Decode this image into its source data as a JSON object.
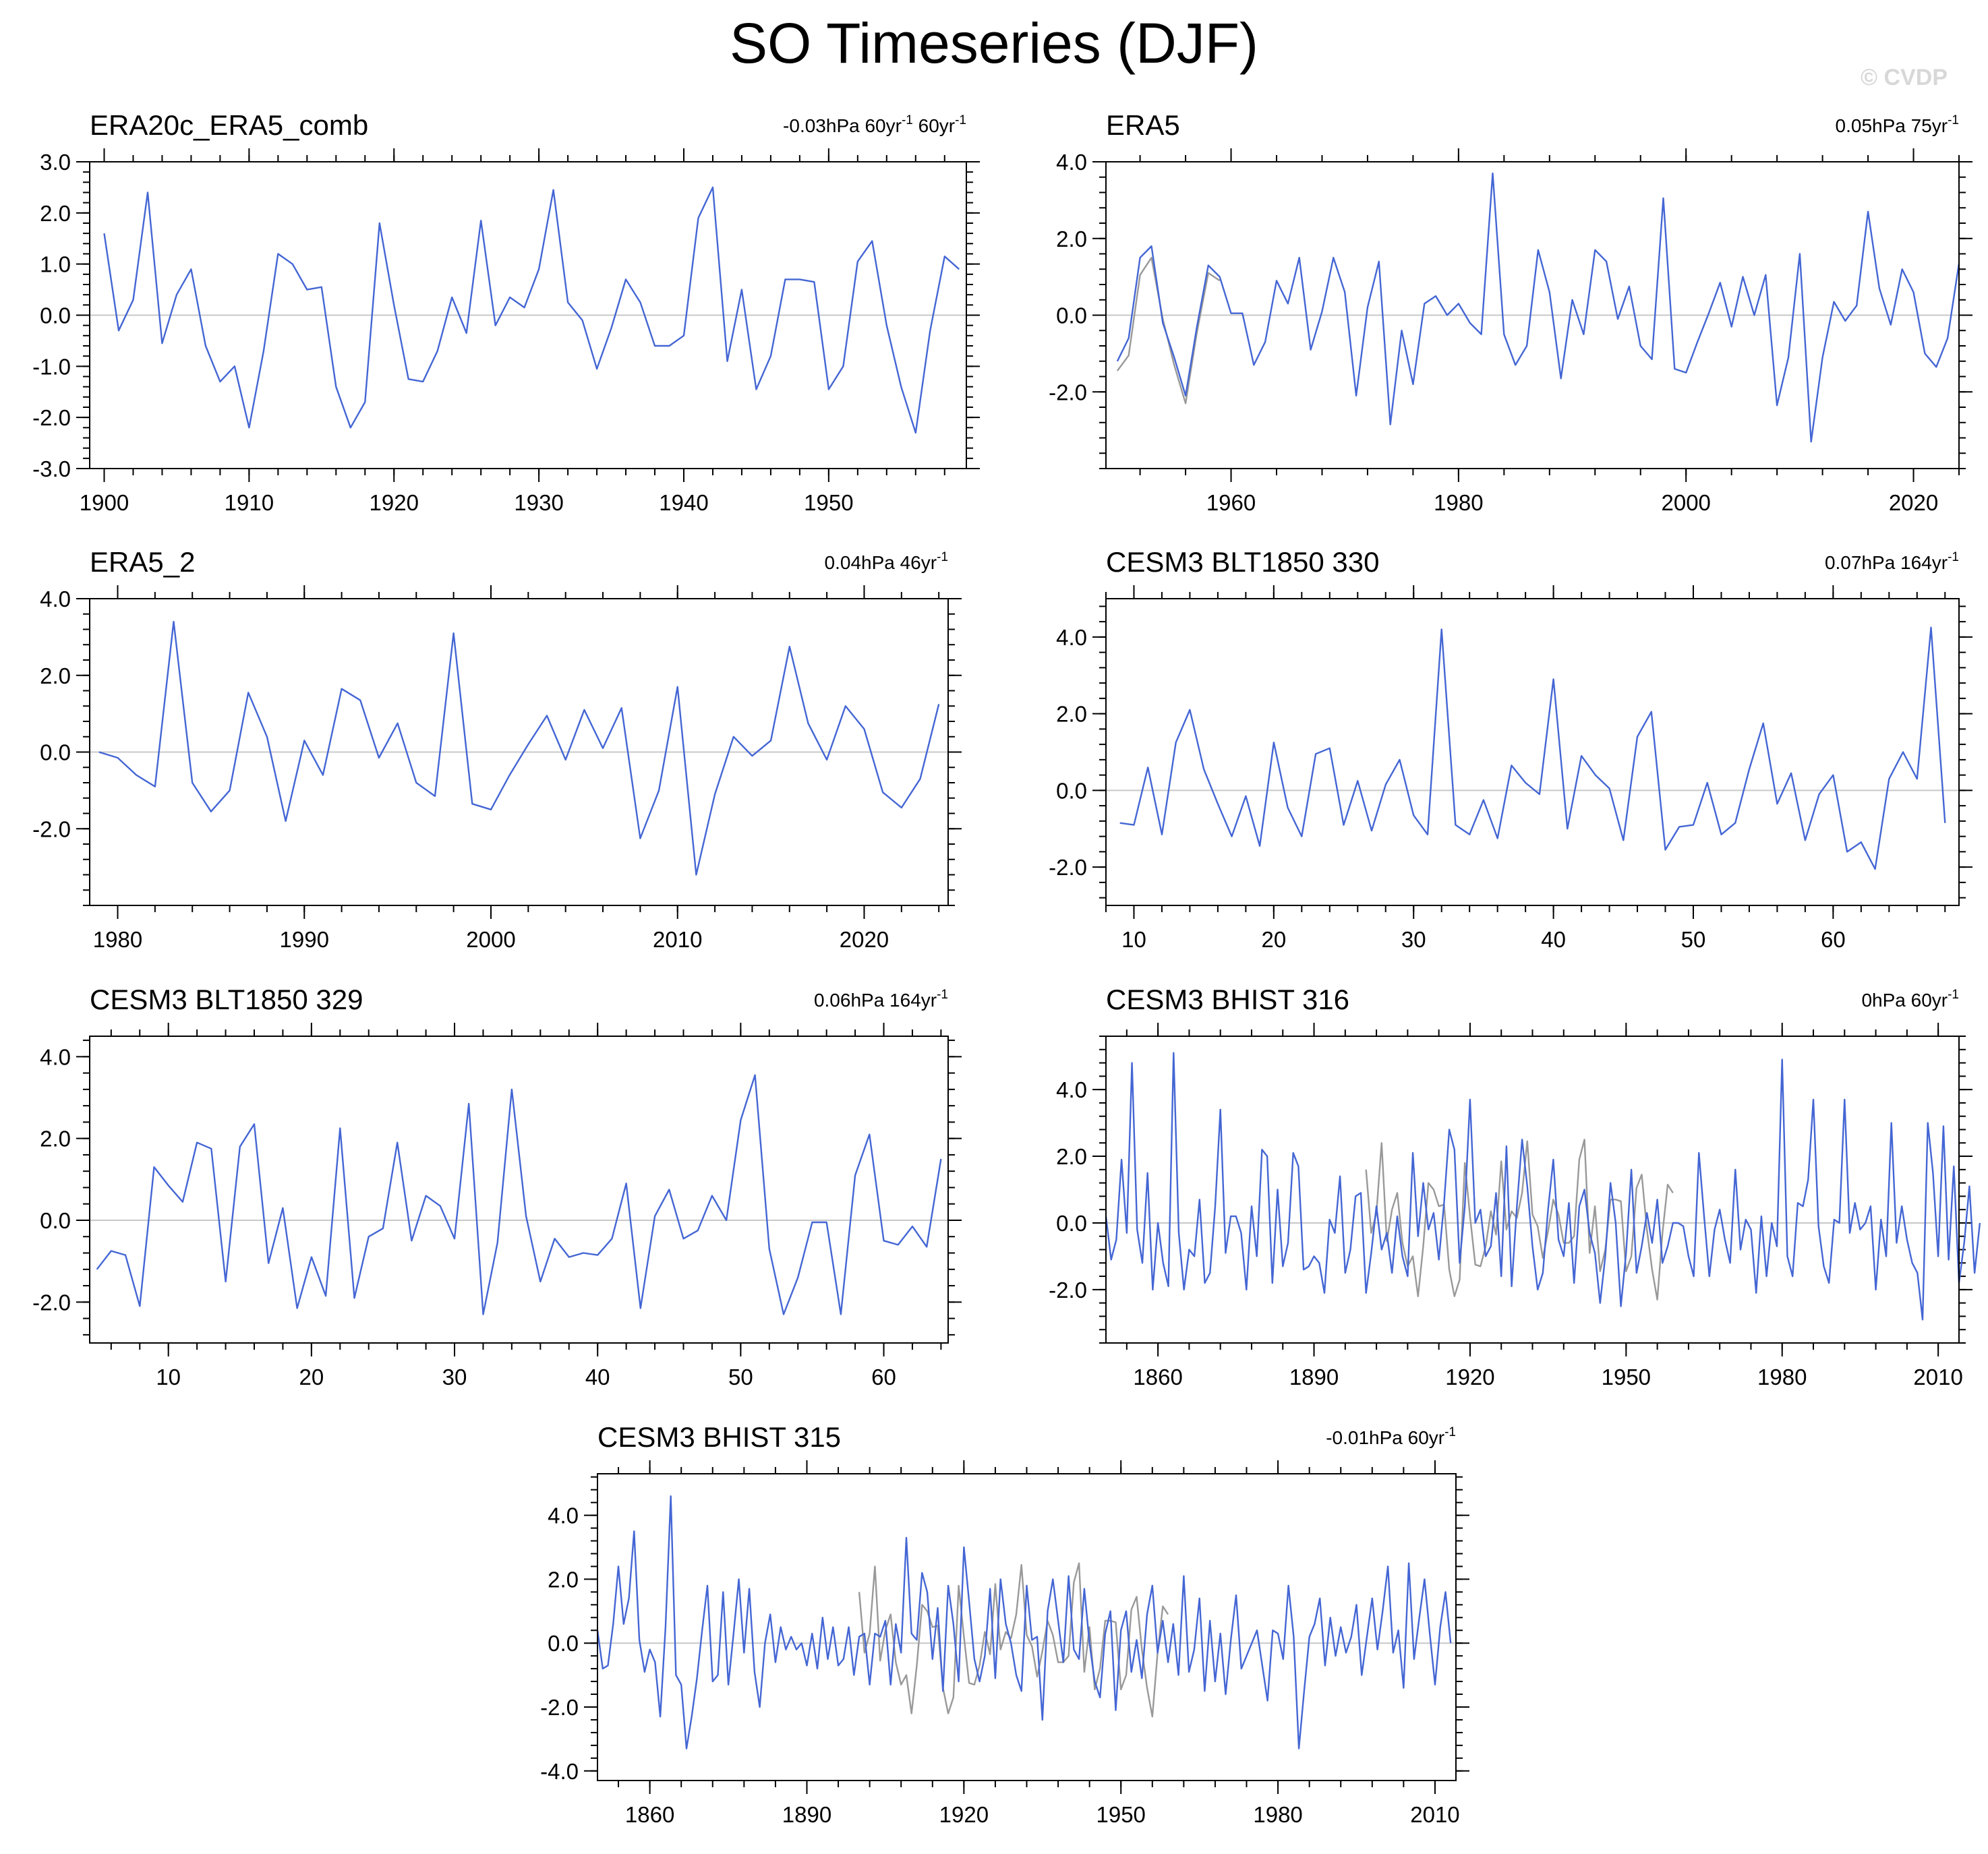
{
  "title": "SO Timeseries (DJF)",
  "watermark": "© CVDP",
  "chart_data": [
    {
      "type": "line",
      "title": "ERA20c_ERA5_comb",
      "trend_text": "-0.03hPa 60yr",
      "trend_sup": "-1",
      "trend_extra": " 60yr",
      "trend_extra_sup": "-1",
      "xlim": [
        1899,
        1959.5
      ],
      "ylim": [
        -3,
        3
      ],
      "xticks": [
        1900,
        1910,
        1920,
        1930,
        1940,
        1950
      ],
      "xtick_labels": [
        "1900",
        "1910",
        "1920",
        "1930",
        "1940",
        "1950"
      ],
      "yticks": [
        -3,
        -2,
        -1,
        0,
        1,
        2,
        3
      ],
      "ytick_labels": [
        "-3.0",
        "-2.0",
        "-1.0",
        "0.0",
        "1.0",
        "2.0",
        "3.0"
      ],
      "series": [
        {
          "color": "#4466d4",
          "x_start": 1900,
          "values": [
            1.6,
            -0.3,
            0.3,
            2.4,
            -0.55,
            0.4,
            0.9,
            -0.6,
            -1.3,
            -1.0,
            -2.2,
            -0.7,
            1.2,
            1.0,
            0.5,
            0.55,
            -1.4,
            -2.2,
            -1.7,
            1.8,
            0.2,
            -1.25,
            -1.3,
            -0.7,
            0.35,
            -0.35,
            1.85,
            -0.2,
            0.35,
            0.15,
            0.9,
            2.45,
            0.25,
            -0.1,
            -1.05,
            -0.25,
            0.7,
            0.25,
            -0.6,
            -0.6,
            -0.4,
            1.9,
            2.5,
            -0.9,
            0.5,
            -1.45,
            -0.8,
            0.7,
            0.7,
            0.65,
            -1.45,
            -1.0,
            1.05,
            1.45,
            -0.2,
            -1.4,
            -2.3,
            -0.3,
            1.15,
            0.9
          ]
        }
      ]
    },
    {
      "type": "line",
      "title": "ERA5",
      "trend_text": "0.05hPa 75yr",
      "trend_sup": "-1",
      "xlim": [
        1949,
        2024
      ],
      "ylim": [
        -4,
        4
      ],
      "xticks": [
        1960,
        1980,
        2000,
        2020
      ],
      "xtick_labels": [
        "1960",
        "1980",
        "2000",
        "2020"
      ],
      "yticks": [
        -2,
        0,
        2,
        4
      ],
      "ytick_labels": [
        "-2.0",
        "0.0",
        "2.0",
        "4.0"
      ],
      "series": [
        {
          "color": "#999999",
          "x_start": 1950,
          "values": [
            -1.45,
            -1.05,
            1.05,
            1.5,
            -0.1,
            -1.3,
            -2.3,
            -0.45,
            1.1,
            0.9
          ]
        },
        {
          "color": "#4466d4",
          "x_start": 1950,
          "values": [
            -1.2,
            -0.6,
            1.5,
            1.8,
            -0.2,
            -1.1,
            -2.1,
            -0.3,
            1.3,
            1.0,
            0.05,
            0.05,
            -1.3,
            -0.7,
            0.9,
            0.3,
            1.5,
            -0.9,
            0.1,
            1.5,
            0.6,
            -2.1,
            0.2,
            1.4,
            -2.85,
            -0.4,
            -1.8,
            0.3,
            0.5,
            0.0,
            0.3,
            -0.2,
            -0.5,
            3.7,
            -0.5,
            -1.3,
            -0.8,
            1.7,
            0.6,
            -1.65,
            0.4,
            -0.5,
            1.7,
            1.4,
            -0.1,
            0.75,
            -0.8,
            -1.15,
            3.05,
            -1.4,
            -1.5,
            -0.7,
            0.05,
            0.85,
            -0.3,
            1.0,
            0.0,
            1.05,
            -2.35,
            -1.1,
            1.6,
            -3.3,
            -1.1,
            0.35,
            -0.15,
            0.25,
            2.7,
            0.7,
            -0.25,
            1.2,
            0.6,
            -1.0,
            -1.35,
            -0.6,
            1.35
          ]
        }
      ]
    },
    {
      "type": "line",
      "title": "ERA5_2",
      "trend_text": "0.04hPa 46yr",
      "trend_sup": "-1",
      "xlim": [
        1978.5,
        2024.5
      ],
      "ylim": [
        -4,
        4
      ],
      "xticks": [
        1980,
        1990,
        2000,
        2010,
        2020
      ],
      "xtick_labels": [
        "1980",
        "1990",
        "2000",
        "2010",
        "2020"
      ],
      "yticks": [
        -2,
        0,
        2,
        4
      ],
      "ytick_labels": [
        "-2.0",
        "0.0",
        "2.0",
        "4.0"
      ],
      "series": [
        {
          "color": "#4466d4",
          "x_start": 1979,
          "values": [
            0.0,
            -0.15,
            -0.6,
            -0.9,
            3.4,
            -0.8,
            -1.55,
            -1.0,
            1.55,
            0.4,
            -1.8,
            0.3,
            -0.6,
            1.65,
            1.35,
            -0.15,
            0.75,
            -0.8,
            -1.15,
            3.1,
            -1.35,
            -1.5,
            -0.6,
            0.2,
            0.95,
            -0.2,
            1.1,
            0.1,
            1.15,
            -2.25,
            -1.0,
            1.7,
            -3.2,
            -1.1,
            0.4,
            -0.1,
            0.3,
            2.75,
            0.75,
            -0.2,
            1.2,
            0.6,
            -1.05,
            -1.45,
            -0.7,
            1.25
          ]
        }
      ]
    },
    {
      "type": "line",
      "title": "CESM3 BLT1850 330",
      "trend_text": "0.07hPa 164yr",
      "trend_sup": "-1",
      "xlim": [
        8,
        69
      ],
      "ylim": [
        -3,
        5
      ],
      "xticks": [
        10,
        20,
        30,
        40,
        50,
        60
      ],
      "xtick_labels": [
        "10",
        "20",
        "30",
        "40",
        "50",
        "60"
      ],
      "yticks": [
        -2,
        0,
        2,
        4
      ],
      "ytick_labels": [
        "-2.0",
        "0.0",
        "2.0",
        "4.0"
      ],
      "series": [
        {
          "color": "#4466d4",
          "x_start": 9,
          "values": [
            -0.85,
            -0.9,
            0.6,
            -1.15,
            1.25,
            2.1,
            0.55,
            -0.35,
            -1.2,
            -0.15,
            -1.45,
            1.25,
            -0.45,
            -1.2,
            0.95,
            1.1,
            -0.9,
            0.25,
            -1.05,
            0.15,
            0.8,
            -0.65,
            -1.15,
            4.2,
            -0.9,
            -1.15,
            -0.25,
            -1.25,
            0.65,
            0.2,
            -0.1,
            2.9,
            -1.0,
            0.9,
            0.4,
            0.05,
            -1.3,
            1.4,
            2.05,
            -1.55,
            -0.95,
            -0.9,
            0.2,
            -1.15,
            -0.85,
            0.55,
            1.75,
            -0.35,
            0.45,
            -1.3,
            -0.1,
            0.4,
            -1.6,
            -1.35,
            -2.05,
            0.3,
            1.0,
            0.3,
            4.25,
            -0.85
          ]
        }
      ]
    },
    {
      "type": "line",
      "title": "CESM3 BLT1850 329",
      "trend_text": "0.06hPa 164yr",
      "trend_sup": "-1",
      "xlim": [
        4.5,
        64.5
      ],
      "ylim": [
        -3,
        4.5
      ],
      "xticks": [
        10,
        20,
        30,
        40,
        50,
        60
      ],
      "xtick_labels": [
        "10",
        "20",
        "30",
        "40",
        "50",
        "60"
      ],
      "yticks": [
        -2,
        0,
        2,
        4
      ],
      "ytick_labels": [
        "-2.0",
        "0.0",
        "2.0",
        "4.0"
      ],
      "series": [
        {
          "color": "#4466d4",
          "x_start": 5,
          "values": [
            -1.2,
            -0.75,
            -0.85,
            -2.1,
            1.3,
            0.85,
            0.45,
            1.9,
            1.75,
            -1.5,
            1.8,
            2.35,
            -1.05,
            0.3,
            -2.15,
            -0.9,
            -1.85,
            2.25,
            -1.9,
            -0.4,
            -0.2,
            1.9,
            -0.5,
            0.6,
            0.35,
            -0.45,
            2.85,
            -2.3,
            -0.55,
            3.2,
            0.1,
            -1.5,
            -0.45,
            -0.9,
            -0.8,
            -0.85,
            -0.45,
            0.9,
            -2.15,
            0.1,
            0.75,
            -0.45,
            -0.25,
            0.6,
            0.0,
            2.45,
            3.55,
            -0.7,
            -2.3,
            -1.4,
            -0.05,
            -0.05,
            -2.3,
            1.1,
            2.1,
            -0.5,
            -0.6,
            -0.15,
            -0.65,
            1.5
          ]
        }
      ]
    },
    {
      "type": "line",
      "title": "CESM3 BHIST 316",
      "trend_text": "0hPa 60yr",
      "trend_sup": "-1",
      "xlim": [
        1850,
        2014
      ],
      "ylim": [
        -3.6,
        5.6
      ],
      "xticks": [
        1860,
        1890,
        1920,
        1950,
        1980,
        2010
      ],
      "xtick_labels": [
        "1860",
        "1890",
        "1920",
        "1950",
        "1980",
        "2010"
      ],
      "yticks": [
        -2,
        0,
        2,
        4
      ],
      "ytick_labels": [
        "-2.0",
        "0.0",
        "2.0",
        "4.0"
      ],
      "series": [
        {
          "color": "#999999",
          "x_start": 1900,
          "values": [
            1.6,
            -0.3,
            0.3,
            2.4,
            -0.55,
            0.4,
            0.9,
            -0.6,
            -1.3,
            -1.0,
            -2.2,
            -0.7,
            1.2,
            1.0,
            0.5,
            0.55,
            -1.4,
            -2.2,
            -1.7,
            1.8,
            0.2,
            -1.25,
            -1.3,
            -0.7,
            0.35,
            -0.35,
            1.85,
            -0.2,
            0.35,
            0.15,
            0.9,
            2.45,
            0.25,
            -0.1,
            -1.05,
            -0.25,
            0.7,
            0.25,
            -0.6,
            -0.6,
            -0.4,
            1.9,
            2.5,
            -0.9,
            0.5,
            -1.45,
            -0.8,
            0.7,
            0.7,
            0.65,
            -1.45,
            -1.0,
            1.05,
            1.45,
            -0.2,
            -1.4,
            -2.3,
            -0.3,
            1.15,
            0.9
          ]
        },
        {
          "color": "#4466d4",
          "x_start": 1850,
          "values": [
            0.2,
            -1.1,
            -0.5,
            1.9,
            -0.3,
            4.8,
            -0.2,
            -1.2,
            1.5,
            -2.0,
            0.0,
            -1.2,
            -1.9,
            5.1,
            -0.3,
            -2.0,
            -0.8,
            -1.0,
            0.7,
            -1.8,
            -1.5,
            0.5,
            3.4,
            -0.9,
            0.2,
            0.2,
            -0.3,
            -2.0,
            0.5,
            -1.0,
            2.2,
            2.0,
            -1.8,
            1.0,
            -1.3,
            -0.6,
            2.1,
            1.7,
            -1.4,
            -1.3,
            -1.0,
            -1.2,
            -2.1,
            0.1,
            -0.3,
            1.4,
            -1.5,
            -0.8,
            0.8,
            0.9,
            -2.1,
            -0.9,
            0.5,
            -0.8,
            -0.3,
            -1.5,
            0.2,
            -1.0,
            -1.6,
            2.1,
            -0.4,
            1.2,
            -0.2,
            0.3,
            -1.1,
            0.6,
            2.8,
            2.2,
            -1.2,
            0.5,
            3.7,
            0.0,
            0.4,
            -1.0,
            -0.7,
            0.9,
            -1.6,
            2.3,
            -1.9,
            0.5,
            2.5,
            1.1,
            -0.7,
            -2.0,
            -1.5,
            0.4,
            1.9,
            -0.5,
            -1.0,
            0.6,
            -1.8,
            0.5,
            1.0,
            -0.3,
            -0.9,
            -2.4,
            -1.0,
            1.2,
            0.0,
            -2.5,
            -0.9,
            1.6,
            -1.5,
            -0.7,
            0.3,
            -0.6,
            0.7,
            -1.2,
            -0.7,
            0.0,
            0.0,
            -0.1,
            -1.0,
            -1.6,
            2.1,
            0.2,
            -1.6,
            -0.2,
            0.4,
            -0.5,
            -1.2,
            1.6,
            -0.8,
            0.1,
            -0.2,
            -2.1,
            0.2,
            -1.6,
            0.0,
            -0.7,
            4.9,
            -1.0,
            -1.6,
            0.6,
            0.5,
            1.3,
            3.7,
            -0.1,
            -1.3,
            -1.8,
            0.1,
            0.0,
            3.7,
            -0.3,
            0.6,
            -0.2,
            0.0,
            0.5,
            -2.0,
            0.1,
            -1.0,
            3.0,
            -0.6,
            0.5,
            -0.5,
            -1.2,
            -1.5,
            -2.9,
            3.0,
            1.5,
            -1.0,
            2.9,
            -1.1,
            1.7,
            -1.8,
            -0.6,
            1.1,
            -1.5,
            0.0
          ]
        }
      ]
    },
    {
      "type": "line",
      "title": "CESM3 BHIST 315",
      "trend_text": "-0.01hPa 60yr",
      "trend_sup": "-1",
      "xlim": [
        1850,
        2014
      ],
      "ylim": [
        -4.3,
        5.3
      ],
      "xticks": [
        1860,
        1890,
        1920,
        1950,
        1980,
        2010
      ],
      "xtick_labels": [
        "1860",
        "1890",
        "1920",
        "1950",
        "1980",
        "2010"
      ],
      "yticks": [
        -4,
        -2,
        0,
        2,
        4
      ],
      "ytick_labels": [
        "-4.0",
        "-2.0",
        "0.0",
        "2.0",
        "4.0"
      ],
      "series": [
        {
          "color": "#999999",
          "x_start": 1900,
          "values": [
            1.6,
            -0.3,
            0.3,
            2.4,
            -0.55,
            0.4,
            0.9,
            -0.6,
            -1.3,
            -1.0,
            -2.2,
            -0.7,
            1.2,
            1.0,
            0.5,
            0.55,
            -1.4,
            -2.2,
            -1.7,
            1.8,
            0.2,
            -1.25,
            -1.3,
            -0.7,
            0.35,
            -0.35,
            1.85,
            -0.2,
            0.35,
            0.15,
            0.9,
            2.45,
            0.25,
            -0.1,
            -1.05,
            -0.25,
            0.7,
            0.25,
            -0.6,
            -0.6,
            -0.4,
            1.9,
            2.5,
            -0.9,
            0.5,
            -1.45,
            -0.8,
            0.7,
            0.7,
            0.65,
            -1.45,
            -1.0,
            1.05,
            1.45,
            -0.2,
            -1.4,
            -2.3,
            -0.3,
            1.15,
            0.9
          ]
        },
        {
          "color": "#4466d4",
          "x_start": 1850,
          "values": [
            0.4,
            -0.8,
            -0.7,
            0.6,
            2.4,
            0.6,
            1.4,
            3.5,
            0.1,
            -0.9,
            -0.2,
            -0.6,
            -2.3,
            0.5,
            4.6,
            -1.0,
            -1.3,
            -3.3,
            -2.3,
            -1.1,
            0.4,
            1.8,
            -1.2,
            -1.0,
            1.6,
            -1.3,
            0.3,
            2.0,
            -0.3,
            1.7,
            -0.9,
            -2.0,
            0.0,
            0.9,
            -0.6,
            0.5,
            -0.2,
            0.2,
            -0.2,
            0.0,
            -0.7,
            0.3,
            -0.8,
            0.8,
            -0.5,
            0.5,
            -0.7,
            -0.5,
            0.5,
            -1.0,
            0.2,
            0.3,
            -1.3,
            0.3,
            0.2,
            0.7,
            -1.3,
            0.6,
            -0.3,
            3.3,
            0.3,
            0.1,
            2.2,
            1.6,
            -0.5,
            1.1,
            -1.5,
            1.8,
            0.6,
            -1.2,
            3.0,
            1.3,
            -0.5,
            -1.2,
            -0.4,
            1.7,
            -1.1,
            2.0,
            0.6,
            0.0,
            -1.0,
            -1.5,
            1.8,
            0.1,
            0.2,
            -2.4,
            1.0,
            2.0,
            0.7,
            -0.6,
            2.1,
            -0.2,
            -0.5,
            1.7,
            0.0,
            -1.2,
            -1.7,
            0.3,
            1.0,
            -2.1,
            0.4,
            1.0,
            -0.9,
            0.1,
            -1.1,
            0.9,
            1.8,
            -0.3,
            0.7,
            -0.6,
            0.6,
            -1.0,
            2.1,
            -0.9,
            -0.2,
            1.4,
            -1.5,
            0.7,
            -1.2,
            0.3,
            -1.6,
            0.1,
            1.5,
            -0.8,
            -0.4,
            0.0,
            0.4,
            -0.7,
            -1.8,
            0.4,
            0.3,
            -0.5,
            1.8,
            0.2,
            -3.3,
            -1.5,
            0.2,
            0.6,
            1.4,
            -0.7,
            0.8,
            -0.4,
            0.5,
            -0.3,
            0.2,
            1.2,
            -1.0,
            0.2,
            1.4,
            -0.2,
            1.0,
            2.4,
            -0.3,
            0.4,
            -1.4,
            2.5,
            -0.5,
            0.8,
            2.0,
            0.3,
            -1.3,
            0.5,
            1.6,
            0.0
          ]
        }
      ]
    }
  ]
}
